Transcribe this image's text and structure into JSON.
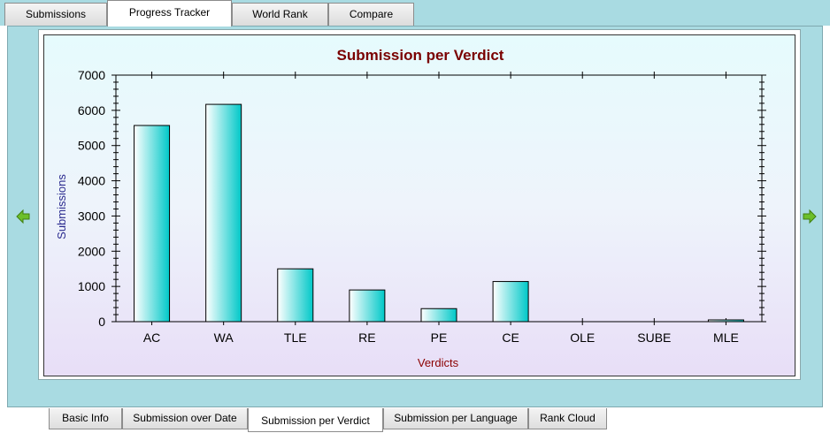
{
  "top_tabs": [
    {
      "label": "Submissions"
    },
    {
      "label": "Progress Tracker"
    },
    {
      "label": "World Rank"
    },
    {
      "label": "Compare"
    }
  ],
  "active_top_tab": "Progress Tracker",
  "bottom_tabs": [
    {
      "label": "Basic Info"
    },
    {
      "label": "Submission over Date"
    },
    {
      "label": "Submission per Verdict"
    },
    {
      "label": "Submission per Language"
    },
    {
      "label": "Rank Cloud"
    }
  ],
  "active_bottom_tab": "Submission per Verdict",
  "icons": {
    "prev": "left-arrow-icon",
    "next": "right-arrow-icon"
  },
  "colors": {
    "title": "#7a0000",
    "ylabel": "#2b2b8f",
    "xlabel": "#8b0000",
    "bar_light": "#ffffff",
    "bar_dark": "#00c8c8",
    "arrow": "#6cbf2a"
  },
  "chart_data": {
    "type": "bar",
    "title": "Submission per Verdict",
    "xlabel": "Verdicts",
    "ylabel": "Submissions",
    "categories": [
      "AC",
      "WA",
      "TLE",
      "RE",
      "PE",
      "CE",
      "OLE",
      "SUBE",
      "MLE"
    ],
    "values": [
      5570,
      6170,
      1500,
      900,
      370,
      1140,
      0,
      0,
      50
    ],
    "ylim": [
      0,
      7000
    ],
    "yticks": [
      0,
      1000,
      2000,
      3000,
      4000,
      5000,
      6000,
      7000
    ],
    "grid": false
  }
}
